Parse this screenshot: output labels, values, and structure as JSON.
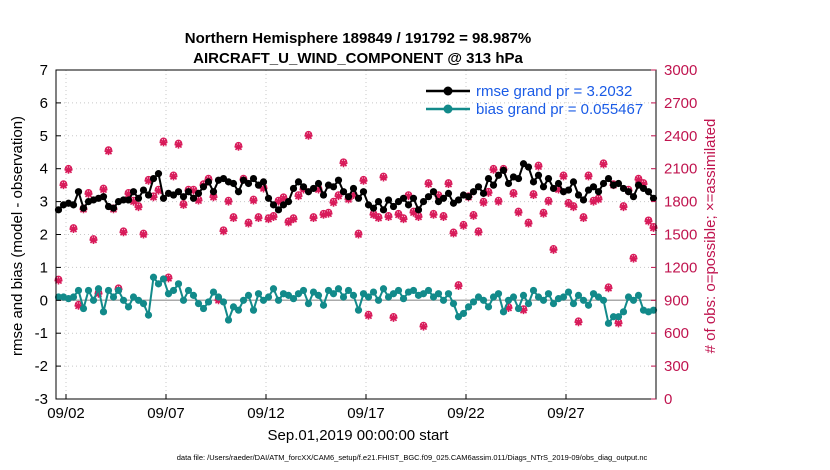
{
  "chart_data": {
    "type": "line",
    "title": "Northern Hemisphere 189849 / 191792 = 98.987%",
    "subtitle": "AIRCRAFT_U_WIND_COMPONENT @ 313 hPa",
    "xlabel": "Sep.01,2019 00:00:00 start",
    "ylabel": "rmse and bias (model - observation)",
    "y2label": "# of obs: o=possible; ×=assimilated",
    "footnote": "data file: /Users/raeder/DAI/ATM_forcXX/CAM6_setup/f.e21.FHIST_BGC.f09_025.CAM6assim.011/Diags_NTrS_2019-09/obs_diag_output.nc",
    "xlim": [
      1.5,
      31.5
    ],
    "ylim": [
      -3,
      7
    ],
    "y2lim": [
      0,
      3000
    ],
    "x_ticks": [
      2,
      7,
      12,
      17,
      22,
      27
    ],
    "x_tick_labels": [
      "09/02",
      "09/07",
      "09/12",
      "09/17",
      "09/22",
      "09/27"
    ],
    "y_ticks": [
      -3,
      -2,
      -1,
      0,
      1,
      2,
      3,
      4,
      5,
      6,
      7
    ],
    "y_tick_labels": [
      "-3",
      "-2",
      "-1",
      "0",
      "1",
      "2",
      "3",
      "4",
      "5",
      "6",
      "7"
    ],
    "y2_ticks": [
      0,
      300,
      600,
      900,
      1200,
      1500,
      1800,
      2100,
      2400,
      2700,
      3000
    ],
    "y2_tick_labels": [
      "0",
      "300",
      "600",
      "900",
      "1200",
      "1500",
      "1800",
      "2100",
      "2400",
      "2700",
      "3000"
    ],
    "grid": true,
    "legend_position": "top-right",
    "colors": {
      "rmse": "#000000",
      "bias": "#128a8a",
      "obs": "#d81b5a",
      "right_axis": "#c0144f",
      "legend_text": "#1a5be6",
      "zero_line": "#aaaaaa"
    },
    "series": [
      {
        "name": "rmse grand pr = 3.2032",
        "axis": "left",
        "x": [
          1.625,
          1.875,
          2.125,
          2.375,
          2.625,
          2.875,
          3.125,
          3.375,
          3.625,
          3.875,
          4.125,
          4.375,
          4.625,
          4.875,
          5.125,
          5.375,
          5.625,
          5.875,
          6.125,
          6.375,
          6.625,
          6.875,
          7.125,
          7.375,
          7.625,
          7.875,
          8.125,
          8.375,
          8.625,
          8.875,
          9.125,
          9.375,
          9.625,
          9.875,
          10.125,
          10.375,
          10.625,
          10.875,
          11.125,
          11.375,
          11.625,
          11.875,
          12.125,
          12.375,
          12.625,
          12.875,
          13.125,
          13.375,
          13.625,
          13.875,
          14.125,
          14.375,
          14.625,
          14.875,
          15.125,
          15.375,
          15.625,
          15.875,
          16.125,
          16.375,
          16.625,
          16.875,
          17.125,
          17.375,
          17.625,
          17.875,
          18.125,
          18.375,
          18.625,
          18.875,
          19.125,
          19.375,
          19.625,
          19.875,
          20.125,
          20.375,
          20.625,
          20.875,
          21.125,
          21.375,
          21.625,
          21.875,
          22.125,
          22.375,
          22.625,
          22.875,
          23.125,
          23.375,
          23.625,
          23.875,
          24.125,
          24.375,
          24.625,
          24.875,
          25.125,
          25.375,
          25.625,
          25.875,
          26.125,
          26.375,
          26.625,
          26.875,
          27.125,
          27.375,
          27.625,
          27.875,
          28.125,
          28.375,
          28.625,
          28.875,
          29.125,
          29.375,
          29.625,
          29.875,
          30.125,
          30.375,
          30.625,
          30.875,
          31.125,
          31.375
        ],
        "values": [
          2.75,
          2.9,
          2.95,
          2.9,
          3.3,
          2.8,
          3.0,
          3.05,
          3.1,
          3.15,
          2.85,
          2.8,
          3.0,
          3.05,
          3.05,
          3.3,
          3.1,
          3.35,
          3.2,
          3.7,
          3.85,
          3.1,
          3.25,
          3.2,
          3.3,
          3.15,
          3.3,
          3.1,
          3.25,
          3.45,
          3.6,
          3.3,
          3.65,
          3.7,
          3.6,
          3.55,
          3.3,
          3.65,
          3.55,
          3.7,
          3.5,
          3.6,
          3.1,
          2.9,
          2.75,
          2.9,
          3.0,
          3.4,
          3.6,
          3.45,
          3.3,
          3.4,
          3.55,
          3.2,
          3.5,
          3.45,
          3.65,
          3.3,
          3.15,
          3.4,
          3.1,
          3.3,
          2.9,
          2.8,
          3.0,
          2.75,
          3.05,
          2.85,
          3.0,
          3.1,
          2.9,
          3.1,
          2.75,
          3.0,
          3.15,
          3.3,
          3.0,
          3.1,
          3.25,
          2.95,
          3.05,
          3.2,
          3.15,
          3.3,
          3.45,
          3.25,
          3.7,
          3.5,
          3.8,
          3.95,
          3.55,
          3.75,
          3.7,
          4.15,
          4.05,
          3.6,
          3.8,
          3.45,
          3.7,
          3.4,
          3.55,
          3.3,
          3.35,
          3.6,
          3.2,
          3.05,
          3.35,
          3.45,
          3.3,
          3.55,
          3.7,
          3.5,
          3.55,
          3.4,
          3.3,
          3.15,
          3.5,
          3.4,
          3.3,
          3.1
        ]
      },
      {
        "name": "bias grand pr = 0.055467",
        "axis": "left",
        "x": [
          1.625,
          1.875,
          2.125,
          2.375,
          2.625,
          2.875,
          3.125,
          3.375,
          3.625,
          3.875,
          4.125,
          4.375,
          4.625,
          4.875,
          5.125,
          5.375,
          5.625,
          5.875,
          6.125,
          6.375,
          6.625,
          6.875,
          7.125,
          7.375,
          7.625,
          7.875,
          8.125,
          8.375,
          8.625,
          8.875,
          9.125,
          9.375,
          9.625,
          9.875,
          10.125,
          10.375,
          10.625,
          10.875,
          11.125,
          11.375,
          11.625,
          11.875,
          12.125,
          12.375,
          12.625,
          12.875,
          13.125,
          13.375,
          13.625,
          13.875,
          14.125,
          14.375,
          14.625,
          14.875,
          15.125,
          15.375,
          15.625,
          15.875,
          16.125,
          16.375,
          16.625,
          16.875,
          17.125,
          17.375,
          17.625,
          17.875,
          18.125,
          18.375,
          18.625,
          18.875,
          19.125,
          19.375,
          19.625,
          19.875,
          20.125,
          20.375,
          20.625,
          20.875,
          21.125,
          21.375,
          21.625,
          21.875,
          22.125,
          22.375,
          22.625,
          22.875,
          23.125,
          23.375,
          23.625,
          23.875,
          24.125,
          24.375,
          24.625,
          24.875,
          25.125,
          25.375,
          25.625,
          25.875,
          26.125,
          26.375,
          26.625,
          26.875,
          27.125,
          27.375,
          27.625,
          27.875,
          28.125,
          28.375,
          28.625,
          28.875,
          29.125,
          29.375,
          29.625,
          29.875,
          30.125,
          30.375,
          30.625,
          30.875,
          31.125,
          31.375
        ],
        "values": [
          0.1,
          0.1,
          0.05,
          0.1,
          0.3,
          -0.25,
          0.3,
          0.0,
          0.35,
          -0.35,
          0.3,
          0.1,
          0.3,
          0.0,
          -0.2,
          0.1,
          0.0,
          -0.1,
          -0.45,
          0.7,
          0.5,
          0.65,
          0.2,
          0.3,
          0.5,
          0.0,
          0.3,
          0.15,
          -0.1,
          -0.25,
          -0.05,
          0.25,
          0.1,
          -0.05,
          -0.6,
          -0.2,
          -0.3,
          0.0,
          0.15,
          -0.3,
          0.2,
          0.0,
          0.1,
          0.35,
          0.0,
          0.2,
          0.15,
          0.05,
          0.2,
          0.3,
          -0.1,
          0.25,
          0.15,
          -0.15,
          0.3,
          0.2,
          0.35,
          0.1,
          0.3,
          0.15,
          -0.3,
          0.2,
          0.1,
          0.25,
          0.0,
          0.35,
          0.1,
          0.2,
          0.3,
          0.05,
          0.25,
          0.3,
          0.15,
          0.2,
          0.3,
          0.1,
          0.2,
          0.0,
          0.2,
          -0.1,
          -0.5,
          -0.4,
          -0.2,
          -0.05,
          0.1,
          0.0,
          -0.2,
          0.1,
          0.2,
          -0.35,
          0.0,
          0.1,
          -0.25,
          0.15,
          -0.1,
          0.3,
          0.1,
          0.0,
          0.2,
          -0.1,
          0.05,
          0.1,
          0.25,
          -0.1,
          0.15,
          0.0,
          -0.15,
          0.2,
          0.1,
          0.0,
          -0.7,
          -0.5,
          -0.5,
          -0.35,
          0.1,
          0.0,
          0.15,
          -0.3,
          -0.35,
          -0.3
        ]
      },
      {
        "name": "# of obs assimilated",
        "axis": "right",
        "marker": "asterisk",
        "x": [
          1.625,
          1.875,
          2.125,
          2.375,
          2.625,
          2.875,
          3.125,
          3.375,
          3.625,
          3.875,
          4.125,
          4.375,
          4.625,
          4.875,
          5.125,
          5.375,
          5.625,
          5.875,
          6.125,
          6.375,
          6.625,
          6.875,
          7.125,
          7.375,
          7.625,
          7.875,
          8.125,
          8.375,
          8.625,
          8.875,
          9.125,
          9.375,
          9.625,
          9.875,
          10.125,
          10.375,
          10.625,
          10.875,
          11.125,
          11.375,
          11.625,
          11.875,
          12.125,
          12.375,
          12.625,
          12.875,
          13.125,
          13.375,
          13.625,
          13.875,
          14.125,
          14.375,
          14.625,
          14.875,
          15.125,
          15.375,
          15.625,
          15.875,
          16.125,
          16.375,
          16.625,
          16.875,
          17.125,
          17.375,
          17.625,
          17.875,
          18.125,
          18.375,
          18.625,
          18.875,
          19.125,
          19.375,
          19.625,
          19.875,
          20.125,
          20.375,
          20.625,
          20.875,
          21.125,
          21.375,
          21.625,
          21.875,
          22.125,
          22.375,
          22.625,
          22.875,
          23.125,
          23.375,
          23.625,
          23.875,
          24.125,
          24.375,
          24.625,
          24.875,
          25.125,
          25.375,
          25.625,
          25.875,
          26.125,
          26.375,
          26.625,
          26.875,
          27.125,
          27.375,
          27.625,
          27.875,
          28.125,
          28.375,
          28.625,
          28.875,
          29.125,
          29.375,
          29.625,
          29.875,
          30.125,
          30.375,
          30.625,
          30.875,
          31.125,
          31.375
        ],
        "values": [
          1080,
          1950,
          2090,
          1550,
          850,
          1730,
          1870,
          1450,
          960,
          1910,
          2260,
          1730,
          1000,
          1520,
          1870,
          1800,
          1750,
          1500,
          1990,
          1840,
          1900,
          2340,
          1100,
          2030,
          2320,
          1770,
          1900,
          1900,
          1810,
          1950,
          2000,
          1840,
          900,
          1530,
          1800,
          1650,
          2300,
          2000,
          1600,
          1810,
          1650,
          1920,
          1640,
          1660,
          1800,
          1830,
          1610,
          1640,
          1850,
          1910,
          2400,
          1650,
          1910,
          1680,
          1690,
          1790,
          1850,
          2150,
          1820,
          1860,
          1500,
          1990,
          760,
          1680,
          1650,
          2020,
          1660,
          740,
          1680,
          1640,
          1850,
          1700,
          1660,
          660,
          1960,
          1680,
          1850,
          1660,
          1960,
          1510,
          1030,
          1580,
          1840,
          1670,
          1520,
          1790,
          1880,
          2090,
          1800,
          2090,
          830,
          1870,
          1700,
          810,
          1600,
          1860,
          2120,
          1690,
          1800,
          1360,
          1910,
          2030,
          1780,
          1750,
          700,
          1650,
          2030,
          1800,
          1820,
          2140,
          1010,
          1950,
          690,
          1750,
          1900,
          1280,
          2000,
          1960,
          1620,
          1560
        ]
      },
      {
        "name": "# of obs possible",
        "axis": "right",
        "marker": "circle",
        "x": [
          1.625,
          1.875,
          2.125,
          2.375,
          2.625,
          2.875,
          3.125,
          3.375,
          3.625,
          3.875,
          4.125,
          4.375,
          4.625,
          4.875,
          5.125,
          5.375,
          5.625,
          5.875,
          6.125,
          6.375,
          6.625,
          6.875,
          7.125,
          7.375,
          7.625,
          7.875,
          8.125,
          8.375,
          8.625,
          8.875,
          9.125,
          9.375,
          9.625,
          9.875,
          10.125,
          10.375,
          10.625,
          10.875,
          11.125,
          11.375,
          11.625,
          11.875,
          12.125,
          12.375,
          12.625,
          12.875,
          13.125,
          13.375,
          13.625,
          13.875,
          14.125,
          14.375,
          14.625,
          14.875,
          15.125,
          15.375,
          15.625,
          15.875,
          16.125,
          16.375,
          16.625,
          16.875,
          17.125,
          17.375,
          17.625,
          17.875,
          18.125,
          18.375,
          18.625,
          18.875,
          19.125,
          19.375,
          19.625,
          19.875,
          20.125,
          20.375,
          20.625,
          20.875,
          21.125,
          21.375,
          21.625,
          21.875,
          22.125,
          22.375,
          22.625,
          22.875,
          23.125,
          23.375,
          23.625,
          23.875,
          24.125,
          24.375,
          24.625,
          24.875,
          25.125,
          25.375,
          25.625,
          25.875,
          26.125,
          26.375,
          26.625,
          26.875,
          27.125,
          27.375,
          27.625,
          27.875,
          28.125,
          28.375,
          28.625,
          28.875,
          29.125,
          29.375,
          29.625,
          29.875,
          30.125,
          30.375,
          30.625,
          30.875,
          31.125,
          31.375
        ],
        "values": [
          1090,
          1960,
          2100,
          1560,
          860,
          1740,
          1880,
          1460,
          970,
          1920,
          2270,
          1740,
          1010,
          1530,
          1880,
          1810,
          1760,
          1510,
          2000,
          1850,
          1910,
          2350,
          1110,
          2040,
          2330,
          1780,
          1910,
          1910,
          1820,
          1960,
          2010,
          1850,
          910,
          1540,
          1810,
          1660,
          2310,
          2010,
          1610,
          1820,
          1660,
          1930,
          1650,
          1670,
          1810,
          1840,
          1620,
          1650,
          1860,
          1920,
          2410,
          1660,
          1920,
          1690,
          1700,
          1800,
          1860,
          2160,
          1830,
          1870,
          1510,
          2000,
          770,
          1690,
          1660,
          2030,
          1670,
          750,
          1690,
          1650,
          1860,
          1710,
          1670,
          670,
          1970,
          1690,
          1860,
          1670,
          1970,
          1520,
          1040,
          1590,
          1850,
          1680,
          1530,
          1800,
          1890,
          2100,
          1810,
          2100,
          840,
          1880,
          1710,
          820,
          1610,
          1870,
          2130,
          1700,
          1810,
          1370,
          1920,
          2040,
          1790,
          1760,
          710,
          1660,
          2040,
          1810,
          1830,
          2150,
          1020,
          1960,
          700,
          1760,
          1910,
          1290,
          2010,
          1970,
          1630,
          1570
        ]
      }
    ]
  }
}
